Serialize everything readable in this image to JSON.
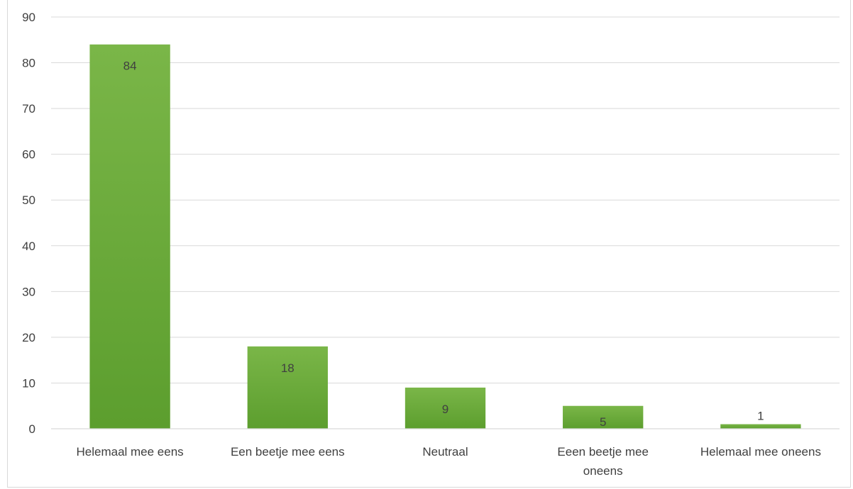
{
  "chart_data": {
    "type": "bar",
    "categories": [
      "Helemaal mee eens",
      "Een beetje mee eens",
      "Neutraal",
      "Eeen beetje mee oneens",
      "Helemaal mee oneens"
    ],
    "category_lines": [
      [
        "Helemaal mee eens"
      ],
      [
        "Een beetje mee eens"
      ],
      [
        "Neutraal"
      ],
      [
        "Eeen beetje mee",
        "oneens"
      ],
      [
        "Helemaal mee oneens"
      ]
    ],
    "values": [
      84,
      18,
      9,
      5,
      1
    ],
    "data_labels": [
      "84",
      "18",
      "9",
      "5",
      "1"
    ],
    "ylim": [
      0,
      90
    ],
    "yticks": [
      0,
      10,
      20,
      30,
      40,
      50,
      60,
      70,
      80,
      90
    ],
    "title": "",
    "xlabel": "",
    "ylabel": "",
    "grid": true,
    "legend": "none",
    "colors": {
      "bar_top": "#7ab648",
      "bar_bottom": "#5c9e2e",
      "gridline": "#d9d9d9",
      "axis_line": "#d9d9d9",
      "tick_text": "#404040",
      "data_label_text": "#404040"
    }
  }
}
